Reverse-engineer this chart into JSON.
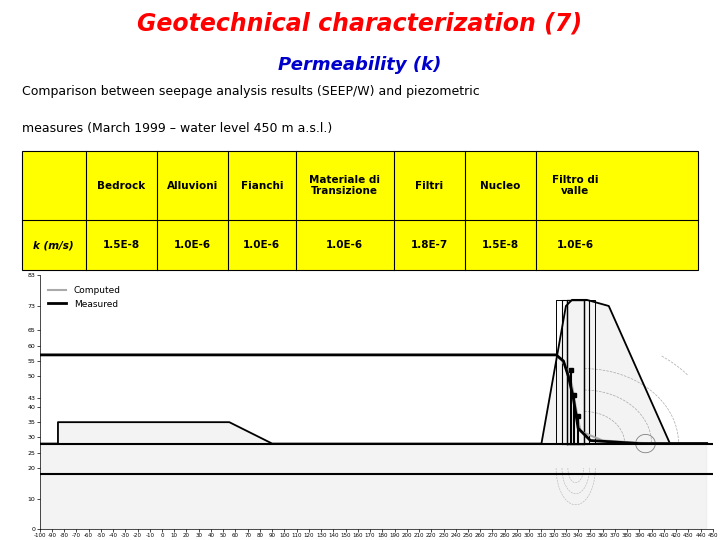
{
  "title1": "Geotechnical characterization (7)",
  "title1_color": "#ff0000",
  "title2": "Permeability (k)",
  "title2_color": "#0000cd",
  "body_text1": "Comparison between seepage analysis results (SEEP/W) and piezometric",
  "body_text2": "measures (March 1999 – water level 450 m a.s.l.)",
  "table_bg": "#ffff00",
  "table_headers": [
    "",
    "Bedrock",
    "Alluvioni",
    "Fianchi",
    "Materiale di\nTransizione",
    "Filtri",
    "Nucleo",
    "Filtro di\nvalle"
  ],
  "table_row_label": "k (m/s)",
  "table_values": [
    "1.5E-8",
    "1.0E-6",
    "1.0E-6",
    "1.0E-6",
    "1.8E-7",
    "1.5E-8",
    "1.0E-6"
  ],
  "legend_computed": "Computed",
  "legend_measured": "Measured",
  "computed_color": "#aaaaaa",
  "measured_color": "#000000",
  "bg_color": "#ffffff",
  "col_widths": [
    0.095,
    0.105,
    0.105,
    0.1,
    0.145,
    0.105,
    0.105,
    0.115
  ],
  "x_min": -100,
  "x_max": 450,
  "y_min": 0,
  "y_max": 83
}
